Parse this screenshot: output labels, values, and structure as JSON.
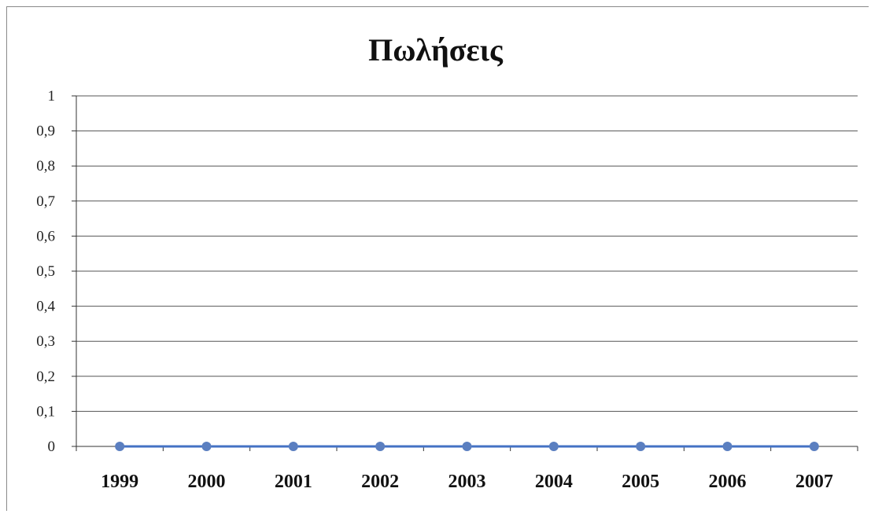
{
  "chart_data": {
    "type": "line",
    "title": "Πωλήσεις",
    "categories": [
      "1999",
      "2000",
      "2001",
      "2002",
      "2003",
      "2004",
      "2005",
      "2006",
      "2007"
    ],
    "series": [
      {
        "values": [
          0,
          0,
          0,
          0,
          0,
          0,
          0,
          0,
          0
        ]
      }
    ],
    "ylim": [
      0,
      1
    ],
    "yticks": [
      "0",
      "0,1",
      "0,2",
      "0,3",
      "0,4",
      "0,5",
      "0,6",
      "0,7",
      "0,8",
      "0,9",
      "1"
    ],
    "grid": true,
    "colors": {
      "series": "#4472c4",
      "marker": "#5b7fc0",
      "grid": "#555555",
      "axis": "#333333"
    }
  }
}
